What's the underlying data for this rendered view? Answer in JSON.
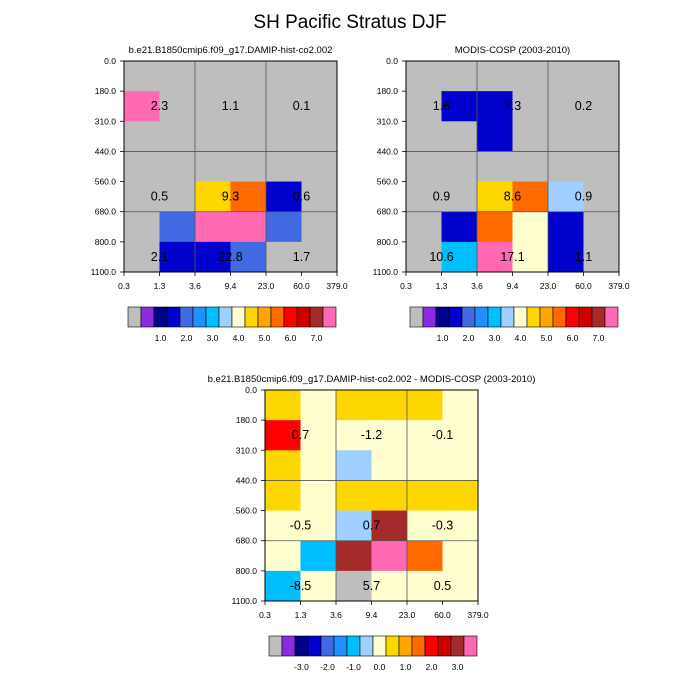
{
  "figure": {
    "title": "SH Pacific Stratus DJF"
  },
  "chart_data": [
    {
      "type": "heatmap",
      "title": "b.e21.B1850cmip6.f09_g17.DAMIP-hist-co2.002",
      "x_tick_labels": [
        "0.3",
        "1.3",
        "3.6",
        "9.4",
        "23.0",
        "60.0",
        "379.0"
      ],
      "y_tick_labels": [
        "0.0",
        "180.0",
        "310.0",
        "440.0",
        "560.0",
        "680.0",
        "800.0",
        "1100.0"
      ],
      "values": [
        [
          null,
          null,
          null,
          null,
          null,
          null
        ],
        [
          7.0,
          null,
          null,
          null,
          null,
          null
        ],
        [
          null,
          null,
          null,
          null,
          null,
          null
        ],
        [
          null,
          null,
          null,
          null,
          null,
          null
        ],
        [
          null,
          null,
          4.0,
          5.0,
          1.0,
          null
        ],
        [
          null,
          1.5,
          7.5,
          7.5,
          1.5,
          null
        ],
        [
          null,
          1.0,
          1.0,
          1.5,
          null,
          null
        ]
      ],
      "annotations": [
        {
          "row": 1,
          "col": 0,
          "text": "2.3"
        },
        {
          "row": 1,
          "col": 2,
          "text": "1.1"
        },
        {
          "row": 1,
          "col": 4,
          "text": "0.1"
        },
        {
          "row": 4,
          "col": 0,
          "text": "0.5"
        },
        {
          "row": 4,
          "col": 2,
          "text": "9.3"
        },
        {
          "row": 4,
          "col": 4,
          "text": "0.6"
        },
        {
          "row": 6,
          "col": 0,
          "text": "2.1"
        },
        {
          "row": 6,
          "col": 2,
          "text": "22.8"
        },
        {
          "row": 6,
          "col": 4,
          "text": "1.7"
        }
      ],
      "colorbar": {
        "labels": [
          "1.0",
          "2.0",
          "3.0",
          "4.0",
          "5.0",
          "6.0",
          "7.0"
        ],
        "colors": [
          "#bebebe",
          "#8a2be2",
          "#00008b",
          "#0000cd",
          "#4169e1",
          "#1e90ff",
          "#00bfff",
          "#a0d0ff",
          "#ffffd0",
          "#ffd700",
          "#ffa500",
          "#ff6a00",
          "#ff0000",
          "#cd0000",
          "#a52a2a",
          "#ff69b4"
        ]
      }
    },
    {
      "type": "heatmap",
      "title": "MODIS-COSP (2003-2010)",
      "x_tick_labels": [
        "0.3",
        "1.3",
        "3.6",
        "9.4",
        "23.0",
        "60.0",
        "379.0"
      ],
      "y_tick_labels": [
        "0.0",
        "180.0",
        "310.0",
        "440.0",
        "560.0",
        "680.0",
        "800.0",
        "1100.0"
      ],
      "values": [
        [
          null,
          null,
          null,
          null,
          null,
          null
        ],
        [
          null,
          1.0,
          1.0,
          null,
          null,
          null
        ],
        [
          null,
          null,
          1.0,
          null,
          null,
          null
        ],
        [
          null,
          null,
          null,
          null,
          null,
          null
        ],
        [
          null,
          null,
          4.0,
          5.0,
          3.0,
          null
        ],
        [
          null,
          1.0,
          5.0,
          3.5,
          1.0,
          null
        ],
        [
          null,
          2.5,
          7.5,
          3.5,
          1.0,
          null
        ],
        [
          1.5,
          6.5,
          4.0,
          1.5,
          null,
          null
        ]
      ],
      "annotations": [
        {
          "row": 1,
          "col": 0,
          "text": "1.6"
        },
        {
          "row": 1,
          "col": 2,
          "text": "2.3"
        },
        {
          "row": 1,
          "col": 4,
          "text": "0.2"
        },
        {
          "row": 4,
          "col": 0,
          "text": "0.9"
        },
        {
          "row": 4,
          "col": 2,
          "text": "8.6"
        },
        {
          "row": 4,
          "col": 4,
          "text": "0.9"
        },
        {
          "row": 6,
          "col": 0,
          "text": "10.6"
        },
        {
          "row": 6,
          "col": 2,
          "text": "17.1"
        },
        {
          "row": 6,
          "col": 4,
          "text": "1.1"
        }
      ],
      "colorbar": {
        "labels": [
          "1.0",
          "2.0",
          "3.0",
          "4.0",
          "5.0",
          "6.0",
          "7.0"
        ],
        "colors": [
          "#bebebe",
          "#8a2be2",
          "#00008b",
          "#0000cd",
          "#4169e1",
          "#1e90ff",
          "#00bfff",
          "#a0d0ff",
          "#ffffd0",
          "#ffd700",
          "#ffa500",
          "#ff6a00",
          "#ff0000",
          "#cd0000",
          "#a52a2a",
          "#ff69b4"
        ]
      }
    },
    {
      "type": "heatmap",
      "title": "b.e21.B1850cmip6.f09_g17.DAMIP-hist-co2.002 - MODIS-COSP (2003-2010)",
      "x_tick_labels": [
        "0.3",
        "1.3",
        "3.6",
        "9.4",
        "23.0",
        "60.0",
        "379.0"
      ],
      "y_tick_labels": [
        "0.0",
        "180.0",
        "310.0",
        "440.0",
        "560.0",
        "680.0",
        "800.0",
        "1100.0"
      ],
      "values": [
        [
          0.1,
          -0.3,
          0.1,
          0.1,
          0.1,
          -0.3
        ],
        [
          1.5,
          -0.3,
          -0.3,
          -0.3,
          -0.3,
          -0.3
        ],
        [
          0.1,
          -0.3,
          -1.0,
          -0.3,
          -0.3,
          -0.3
        ],
        [
          0.1,
          -0.3,
          0.1,
          0.1,
          0.1,
          0.1
        ],
        [
          -0.3,
          -0.3,
          -1.0,
          2.5,
          -0.3,
          -0.3
        ],
        [
          -0.3,
          -1.5,
          2.5,
          3.5,
          1.0,
          -0.3
        ],
        [
          -1.5,
          -0.3,
          null,
          -0.3,
          -0.3,
          -0.3
        ]
      ],
      "annotations": [
        {
          "row": 1,
          "col": 0,
          "text": "0.7"
        },
        {
          "row": 1,
          "col": 2,
          "text": "-1.2"
        },
        {
          "row": 1,
          "col": 4,
          "text": "-0.1"
        },
        {
          "row": 4,
          "col": 0,
          "text": "-0.5"
        },
        {
          "row": 4,
          "col": 2,
          "text": "0.7"
        },
        {
          "row": 4,
          "col": 4,
          "text": "-0.3"
        },
        {
          "row": 6,
          "col": 0,
          "text": "-8.5"
        },
        {
          "row": 6,
          "col": 2,
          "text": "5.7"
        },
        {
          "row": 6,
          "col": 4,
          "text": "0.5"
        }
      ],
      "colorbar": {
        "labels": [
          "-3.0",
          "-2.0",
          "-1.0",
          "0.0",
          "1.0",
          "2.0",
          "3.0"
        ],
        "colors": [
          "#bebebe",
          "#8a2be2",
          "#00008b",
          "#0000cd",
          "#4169e1",
          "#1e90ff",
          "#00bfff",
          "#a0d0ff",
          "#ffffd0",
          "#ffd700",
          "#ffa500",
          "#ff6a00",
          "#ff0000",
          "#cd0000",
          "#a52a2a",
          "#ff69b4"
        ]
      }
    }
  ]
}
